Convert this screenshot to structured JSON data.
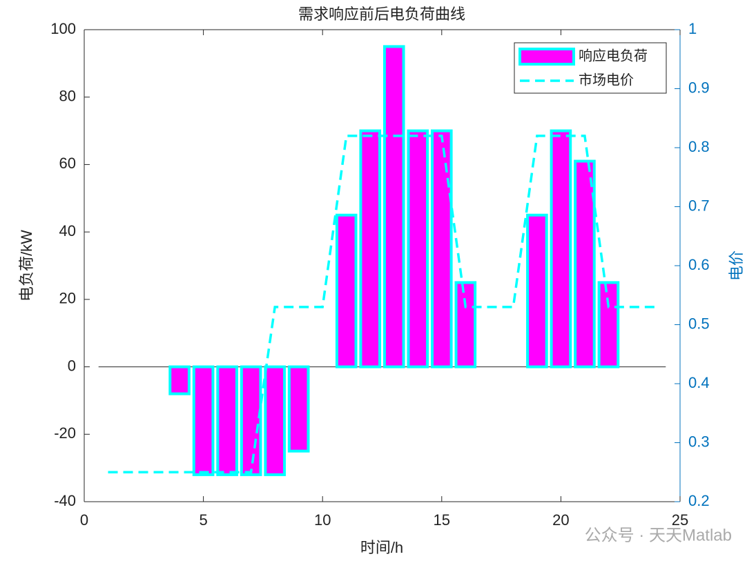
{
  "chart_data": {
    "type": "bar",
    "title": "需求响应前后电负荷曲线",
    "xlabel": "时间/h",
    "ylabel": "电负荷/kW",
    "y2label": "电价",
    "x": [
      1,
      2,
      3,
      4,
      5,
      6,
      7,
      8,
      9,
      10,
      11,
      12,
      13,
      14,
      15,
      16,
      17,
      18,
      19,
      20,
      21,
      22,
      23,
      24
    ],
    "series": [
      {
        "name": "响应电负荷",
        "type": "bar",
        "color": "#ff00ff",
        "edgecolor": "#00ffff",
        "values": [
          0,
          0,
          0,
          -8,
          -32,
          -32,
          -32,
          -32,
          -25,
          0,
          45,
          70,
          95,
          70,
          70,
          25,
          0,
          0,
          45,
          70,
          61,
          25,
          0,
          0
        ]
      },
      {
        "name": "市场电价",
        "type": "line",
        "axis": "y2",
        "color": "#00ffff",
        "values": [
          0.25,
          0.25,
          0.25,
          0.25,
          0.25,
          0.25,
          0.25,
          0.53,
          0.53,
          0.53,
          0.82,
          0.82,
          0.82,
          0.82,
          0.82,
          0.53,
          0.53,
          0.53,
          0.82,
          0.82,
          0.82,
          0.53,
          0.53,
          0.53
        ]
      }
    ],
    "xlim": [
      0,
      25
    ],
    "xticks": [
      0,
      5,
      10,
      15,
      20,
      25
    ],
    "ylim": [
      -40,
      100
    ],
    "yticks": [
      -40,
      -20,
      0,
      20,
      40,
      60,
      80,
      100
    ],
    "y2lim": [
      0.2,
      1
    ],
    "y2ticks": [
      0.2,
      0.3,
      0.4,
      0.5,
      0.6,
      0.7,
      0.8,
      0.9,
      1
    ],
    "y2color": "#0072bd",
    "legend": "upper right",
    "watermark": "公众号 · 天天Matlab"
  }
}
